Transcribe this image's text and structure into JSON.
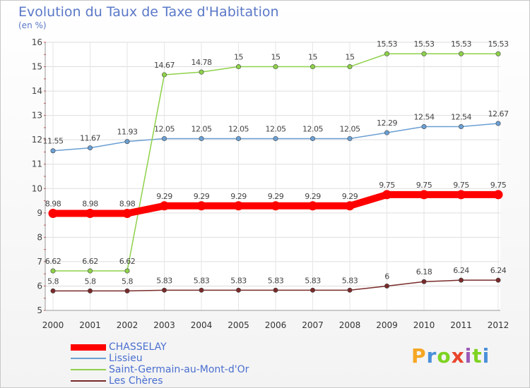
{
  "header": {
    "title": "Evolution du Taux de Taxe d'Habitation",
    "subtitle": "(en %)"
  },
  "logo": {
    "text": "Proxiti",
    "colors": [
      "#f5a623",
      "#4a90d9",
      "#7ed321",
      "#e8452c",
      "#9b59b6",
      "#7ed321",
      "#4a90d9"
    ]
  },
  "chart_data": {
    "type": "line",
    "x": [
      "2000",
      "2001",
      "2002",
      "2003",
      "2004",
      "2005",
      "2006",
      "2007",
      "2008",
      "2009",
      "2010",
      "2011",
      "2012"
    ],
    "ylim": [
      5,
      16
    ],
    "yticks": [
      5,
      6,
      7,
      8,
      9,
      10,
      11,
      12,
      13,
      14,
      15,
      16
    ],
    "grid": true,
    "legend_position": "bottom-left",
    "series": [
      {
        "name": "CHASSELAY",
        "color": "#ff0000",
        "values": [
          8.98,
          8.98,
          8.98,
          9.29,
          9.29,
          9.29,
          9.29,
          9.29,
          9.29,
          9.75,
          9.75,
          9.75,
          9.75
        ],
        "labels": [
          "8.98",
          "8.98",
          "8.98",
          "9.29",
          "9.29",
          "9.29",
          "9.29",
          "9.29",
          "9.29",
          "9.75",
          "9.75",
          "9.75",
          "9.75"
        ]
      },
      {
        "name": "Lissieu",
        "color": "#6a9fd4",
        "values": [
          11.55,
          11.67,
          11.93,
          12.05,
          12.05,
          12.05,
          12.05,
          12.05,
          12.05,
          12.29,
          12.54,
          12.54,
          12.67
        ],
        "labels": [
          "11.55",
          "11.67",
          "11.93",
          "12.05",
          "12.05",
          "12.05",
          "12.05",
          "12.05",
          "12.05",
          "12.29",
          "12.54",
          "12.54",
          "12.67"
        ]
      },
      {
        "name": "Saint-Germain-au-Mont-d'Or",
        "color": "#8ed14a",
        "values": [
          6.62,
          6.62,
          6.62,
          14.67,
          14.78,
          15,
          15,
          15,
          15,
          15.53,
          15.53,
          15.53,
          15.53
        ],
        "labels": [
          "6.62",
          "6.62",
          "6.62",
          "14.67",
          "14.78",
          "15",
          "15",
          "15",
          "15",
          "15.53",
          "15.53",
          "15.53",
          "15.53"
        ]
      },
      {
        "name": "Les Chères",
        "color": "#7a2a2a",
        "values": [
          5.8,
          5.8,
          5.8,
          5.83,
          5.83,
          5.83,
          5.83,
          5.83,
          5.83,
          6,
          6.18,
          6.24,
          6.24
        ],
        "labels": [
          "5.8",
          "5.8",
          "5.8",
          "5.83",
          "5.83",
          "5.83",
          "5.83",
          "5.83",
          "5.83",
          "6",
          "6.18",
          "6.24",
          "6.24"
        ]
      }
    ]
  }
}
